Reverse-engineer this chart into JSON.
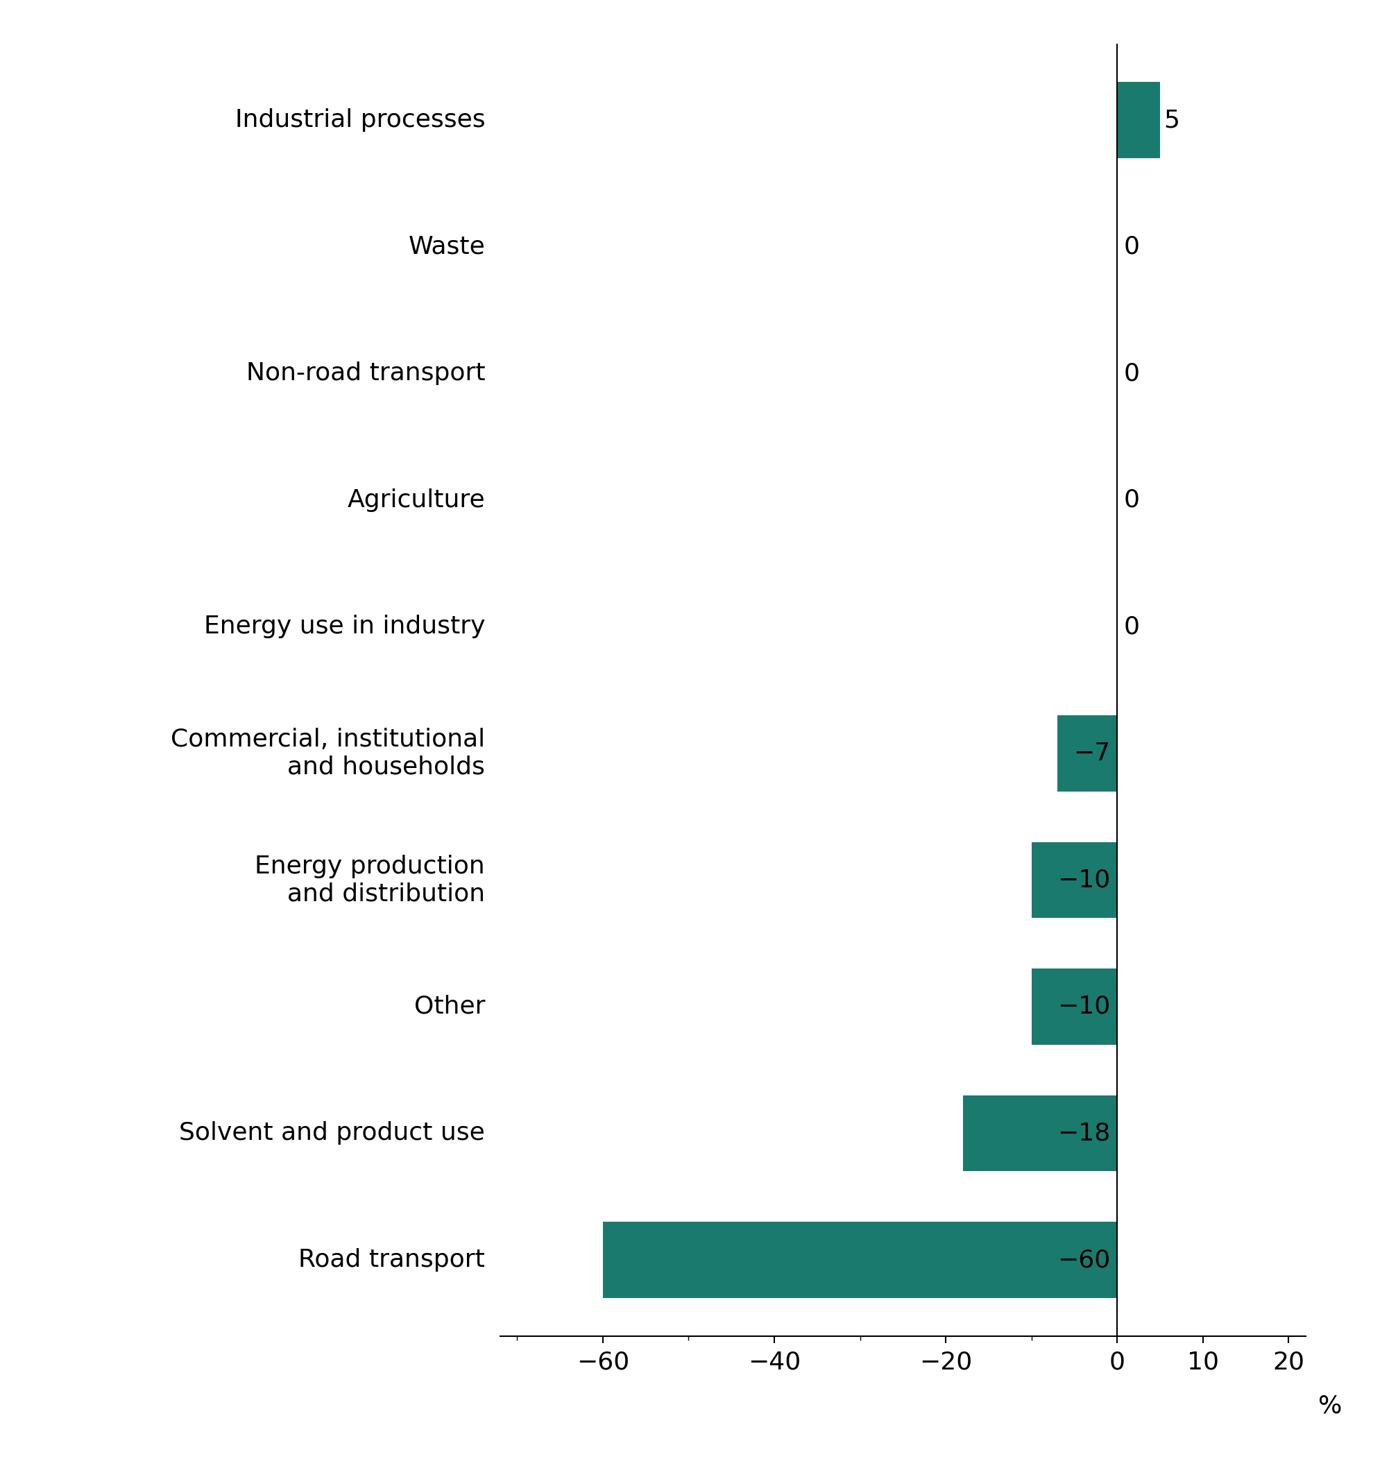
{
  "categories": [
    "Road transport",
    "Solvent and product use",
    "Other",
    "Energy production\nand distribution",
    "Commercial, institutional\nand households",
    "Energy use in industry",
    "Agriculture",
    "Non-road transport",
    "Waste",
    "Industrial processes"
  ],
  "values": [
    -60,
    -18,
    -10,
    -10,
    -7,
    0,
    0,
    0,
    0,
    5
  ],
  "bar_color": "#1a7a6e",
  "bar_labels": [
    "−60",
    "−18",
    "−10",
    "−10",
    "−7",
    "0",
    "0",
    "0",
    "0",
    "5"
  ],
  "xlim": [
    -72,
    22
  ],
  "xticks": [
    -60,
    -40,
    -20,
    0,
    10,
    20
  ],
  "xtick_labels": [
    "−60",
    "−40",
    "−20",
    "0",
    "10",
    "20"
  ],
  "xlabel": "%",
  "background_color": "#ffffff",
  "bar_height": 0.6,
  "label_fontsize": 26,
  "tick_fontsize": 26,
  "xlabel_fontsize": 26,
  "ytick_fontsize": 26
}
